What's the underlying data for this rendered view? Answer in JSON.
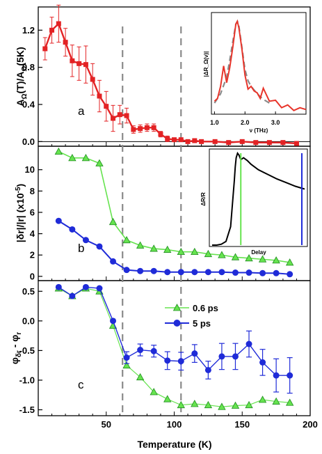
{
  "colors": {
    "red": "#e32224",
    "green": "#66e34f",
    "greenEdge": "#1e8c1e",
    "blue": "#1f2bd8",
    "dash": "#8a8a8a",
    "insetRed": "#e8342a",
    "insetGray": "#8a8a8a"
  },
  "chart_data": [
    {
      "panel": "a",
      "type": "scatter",
      "ylabel": "A_Ω(T)/A_Ω(5K)",
      "ylabel_main": "A",
      "ylabel_sub1": "Ω",
      "ylabel_mid": "(T)/A",
      "ylabel_sub2": "Ω",
      "ylabel_end": "(5K)",
      "xlim": [
        0,
        200
      ],
      "ylim": [
        -0.05,
        1.45
      ],
      "yticks": [
        "0.0",
        "0.4",
        "0.8",
        "1.2"
      ],
      "marker": "square",
      "series": [
        {
          "x": [
            5,
            10,
            15,
            20,
            25,
            30,
            35,
            40,
            45,
            50,
            55,
            60,
            65,
            70,
            75,
            80,
            85,
            90,
            95,
            100,
            105,
            110,
            115,
            120,
            130,
            140,
            150,
            160,
            170,
            180,
            190
          ],
          "y": [
            1.0,
            1.2,
            1.27,
            1.07,
            0.87,
            0.84,
            0.83,
            0.67,
            0.49,
            0.38,
            0.25,
            0.29,
            0.28,
            0.13,
            0.14,
            0.15,
            0.15,
            0.08,
            0.03,
            0.02,
            0.02,
            0.0,
            0.01,
            0.0,
            0.0,
            -0.01,
            0.0,
            -0.01,
            -0.01,
            -0.01,
            -0.02
          ],
          "err": [
            0.12,
            0.14,
            0.2,
            0.15,
            0.17,
            0.18,
            0.2,
            0.17,
            0.17,
            0.16,
            0.14,
            0.1,
            0.08,
            0.04,
            0.04,
            0.04,
            0.04,
            0.03,
            0.03,
            0.02,
            0.02,
            0.02,
            0.02,
            0.02,
            0.02,
            0.02,
            0.02,
            0.02,
            0.02,
            0.02,
            0.02
          ]
        }
      ],
      "annotation": "a"
    },
    {
      "panel": "b",
      "type": "line",
      "ylabel": "|δr|/|r| (x10⁻⁵)",
      "ylabel_main": "|δr|/|r| (x10",
      "ylabel_sup": "-5",
      "ylabel_end": ")",
      "xlim": [
        0,
        200
      ],
      "ylim": [
        -0.4,
        12.2
      ],
      "yticks": [
        "0",
        "2",
        "4",
        "6",
        "8",
        "10"
      ],
      "series": [
        {
          "name": "0.6 ps",
          "marker": "triangle",
          "x": [
            15,
            25,
            35,
            45,
            55,
            65,
            75,
            85,
            95,
            105,
            115,
            125,
            135,
            145,
            155,
            165,
            175,
            185
          ],
          "y": [
            11.7,
            11.1,
            11.1,
            10.6,
            5.1,
            3.4,
            2.9,
            2.6,
            2.5,
            2.3,
            2.3,
            2.1,
            2.0,
            1.8,
            1.7,
            1.6,
            1.5,
            1.3
          ]
        },
        {
          "name": "5 ps",
          "marker": "circle",
          "x": [
            15,
            25,
            35,
            45,
            55,
            65,
            75,
            85,
            95,
            105,
            115,
            125,
            135,
            145,
            155,
            165,
            175,
            185
          ],
          "y": [
            5.2,
            4.4,
            3.4,
            2.8,
            1.4,
            0.6,
            0.5,
            0.5,
            0.4,
            0.4,
            0.4,
            0.4,
            0.4,
            0.35,
            0.35,
            0.3,
            0.3,
            0.2
          ]
        }
      ],
      "annotation": "b"
    },
    {
      "panel": "c",
      "type": "line",
      "ylabel": "φ_δr - φ_r",
      "ylabel_main": "φ",
      "ylabel_sub1": "δr",
      "ylabel_mid": " - φ",
      "ylabel_sub2": "r",
      "xlabel": "Temperature (K)",
      "xlim": [
        0,
        200
      ],
      "ylim": [
        -1.6,
        0.68
      ],
      "xticks": [
        "50",
        "100",
        "150",
        "200"
      ],
      "yticks": [
        "-1.5",
        "-1.0",
        "-0.5",
        "0.0",
        "0.5"
      ],
      "series": [
        {
          "name": "0.6 ps",
          "marker": "triangle",
          "x": [
            15,
            25,
            35,
            45,
            55,
            65,
            75,
            85,
            95,
            105,
            115,
            125,
            135,
            145,
            155,
            165,
            175,
            185
          ],
          "y": [
            0.55,
            0.42,
            0.55,
            0.5,
            -0.08,
            -0.75,
            -0.95,
            -1.2,
            -1.32,
            -1.42,
            -1.4,
            -1.42,
            -1.45,
            -1.43,
            -1.42,
            -1.33,
            -1.36,
            -1.38
          ],
          "err": []
        },
        {
          "name": "5 ps",
          "marker": "circle",
          "x": [
            15,
            25,
            35,
            45,
            55,
            65,
            75,
            85,
            95,
            105,
            115,
            125,
            135,
            145,
            155,
            165,
            175,
            185
          ],
          "y": [
            0.57,
            0.42,
            0.57,
            0.55,
            0.0,
            -0.62,
            -0.49,
            -0.51,
            -0.67,
            -0.68,
            -0.55,
            -0.83,
            -0.6,
            -0.6,
            -0.39,
            -0.7,
            -0.92,
            -0.92
          ],
          "err": [
            0.0,
            0.0,
            0.0,
            0.0,
            0.0,
            0.1,
            0.1,
            0.1,
            0.15,
            0.15,
            0.15,
            0.15,
            0.22,
            0.22,
            0.22,
            0.22,
            0.28,
            0.3
          ]
        }
      ],
      "legend": [
        "0.6 ps",
        "5 ps"
      ],
      "annotation": "c"
    },
    {
      "panel": "inset-a",
      "type": "line",
      "ylabel": "|ΔR_Ω(ν)|",
      "xlabel": "ν (THz)",
      "xlim": [
        0.9,
        4.0
      ],
      "ylim": [
        0,
        1.05
      ],
      "xticks": [
        "1.0",
        "2.0",
        "3.0"
      ],
      "series": [
        {
          "name": "data",
          "x": [
            1.0,
            1.1,
            1.2,
            1.3,
            1.4,
            1.5,
            1.6,
            1.7,
            1.75,
            1.8,
            1.9,
            2.0,
            2.1,
            2.2,
            2.3,
            2.4,
            2.5,
            2.6,
            2.8,
            3.0,
            3.2,
            3.4,
            3.6,
            3.8,
            4.0
          ],
          "y": [
            0.14,
            0.17,
            0.3,
            0.52,
            0.34,
            0.5,
            0.72,
            0.97,
            1.0,
            0.93,
            0.7,
            0.42,
            0.27,
            0.3,
            0.25,
            0.23,
            0.17,
            0.28,
            0.14,
            0.15,
            0.07,
            0.1,
            0.04,
            0.07,
            0.05
          ]
        },
        {
          "name": "fit",
          "style": "dashed",
          "x": [
            1.0,
            1.2,
            1.4,
            1.5,
            1.6,
            1.7,
            1.75,
            1.8,
            1.9,
            2.0,
            2.1,
            2.2,
            2.4,
            2.6,
            2.8
          ],
          "y": [
            0.12,
            0.22,
            0.4,
            0.58,
            0.78,
            0.97,
            1.0,
            0.95,
            0.72,
            0.48,
            0.36,
            0.3,
            0.22,
            0.16,
            0.12
          ]
        }
      ]
    },
    {
      "panel": "inset-b",
      "type": "line",
      "ylabel": "ΔR/R",
      "xlabel": "Delay",
      "xlim": [
        0,
        10
      ],
      "ylim": [
        0,
        1.0
      ],
      "series": [
        {
          "name": "transient",
          "x": [
            0.0,
            0.5,
            1.0,
            1.5,
            2.0,
            2.2,
            2.4,
            2.5,
            2.6,
            2.75,
            2.9,
            3.1,
            3.4,
            3.8,
            4.2,
            5.0,
            6.0,
            7.0,
            8.0,
            9.0,
            10.0
          ],
          "y": [
            0.0,
            0.0,
            0.01,
            0.04,
            0.2,
            0.45,
            0.7,
            0.85,
            0.95,
            1.0,
            0.98,
            0.93,
            0.95,
            0.92,
            0.88,
            0.82,
            0.77,
            0.72,
            0.68,
            0.64,
            0.61
          ]
        }
      ],
      "markers": [
        {
          "label": "0.6 ps",
          "x": 3.1,
          "color": "#66e34f"
        },
        {
          "label": "5 ps",
          "x": 9.7,
          "color": "#1f2bd8"
        }
      ]
    }
  ],
  "vlines_temperature": [
    62,
    105
  ]
}
